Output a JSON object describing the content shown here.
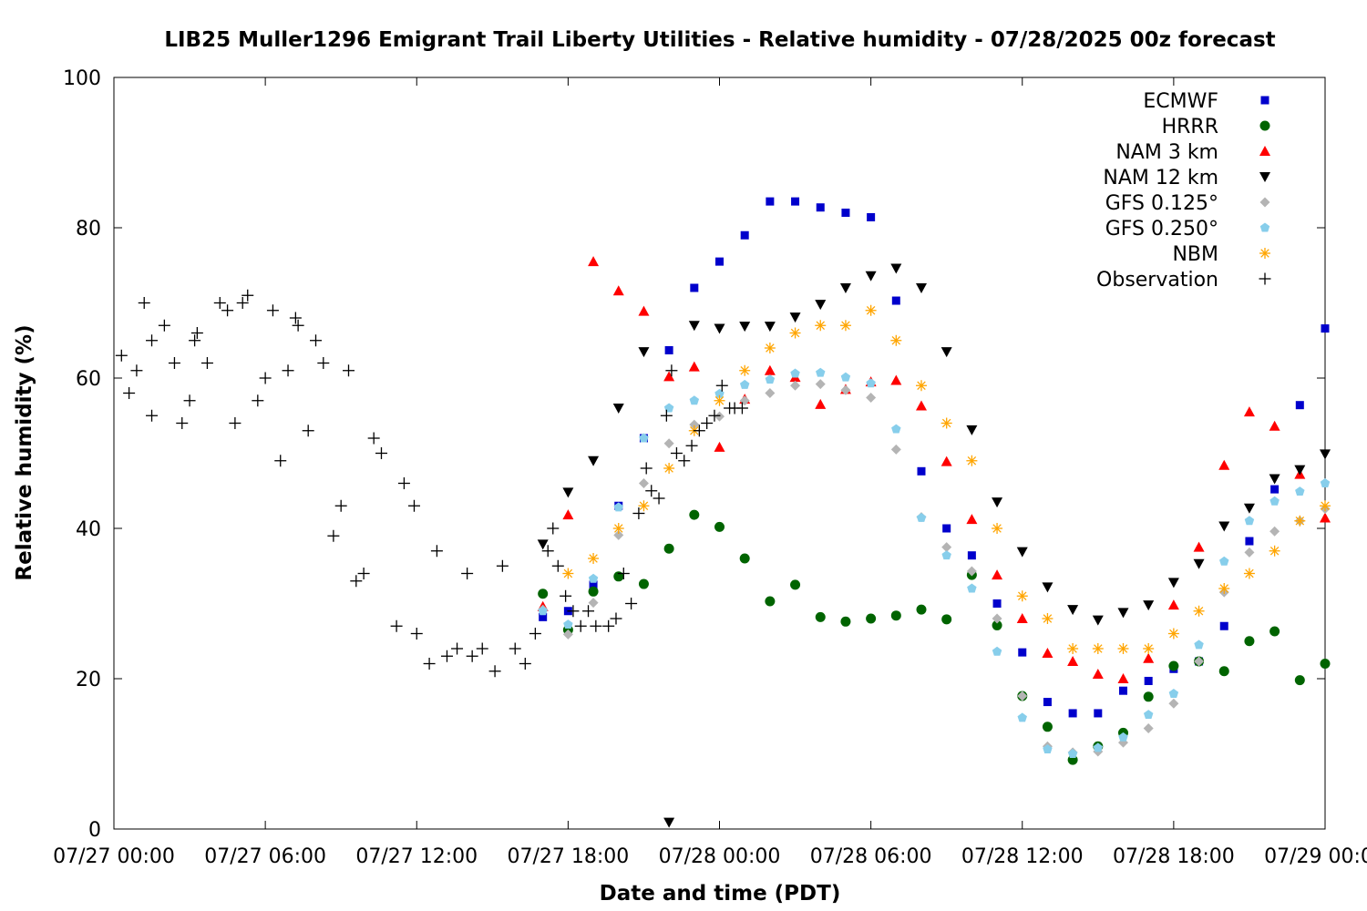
{
  "chart_data": {
    "type": "scatter",
    "title": "LIB25 Muller1296 Emigrant Trail Liberty Utilities - Relative humidity - 07/28/2025 00z forecast",
    "xlabel": "Date and time (PDT)",
    "ylabel": "Relative humidity (%)",
    "x_unit": "hours since 07/27 00:00 PDT",
    "xlim": [
      0,
      48
    ],
    "ylim": [
      0,
      100
    ],
    "x_ticks": [
      {
        "value": 0,
        "label": "07/27 00:00"
      },
      {
        "value": 6,
        "label": "07/27 06:00"
      },
      {
        "value": 12,
        "label": "07/27 12:00"
      },
      {
        "value": 18,
        "label": "07/27 18:00"
      },
      {
        "value": 24,
        "label": "07/28 00:00"
      },
      {
        "value": 30,
        "label": "07/28 06:00"
      },
      {
        "value": 36,
        "label": "07/28 12:00"
      },
      {
        "value": 42,
        "label": "07/28 18:00"
      },
      {
        "value": 48,
        "label": "07/29 00:00"
      }
    ],
    "y_ticks": [
      {
        "value": 0,
        "label": "0"
      },
      {
        "value": 20,
        "label": "20"
      },
      {
        "value": 40,
        "label": "40"
      },
      {
        "value": 60,
        "label": "60"
      },
      {
        "value": 80,
        "label": "80"
      },
      {
        "value": 100,
        "label": "100"
      }
    ],
    "grid": false,
    "legend_position": "top-right",
    "series": [
      {
        "name": "ECMWF",
        "marker": "square",
        "color": "#0000cc",
        "x": [
          17,
          18,
          19,
          20,
          21,
          22,
          23,
          24,
          25,
          26,
          27,
          28,
          29,
          30,
          31,
          32,
          33,
          34,
          35,
          36,
          37,
          38,
          39,
          40,
          41,
          42,
          43,
          44,
          45,
          46,
          47,
          48
        ],
        "y": [
          28.2,
          29,
          32.5,
          43,
          52,
          63.7,
          72,
          75.5,
          79,
          83.5,
          83.5,
          82.7,
          82,
          81.4,
          70.3,
          47.6,
          40,
          36.4,
          30,
          23.5,
          16.9,
          15.4,
          15.4,
          18.4,
          19.7,
          21.3,
          22.3,
          27,
          38.3,
          45.2,
          56.4,
          66.6
        ]
      },
      {
        "name": "HRRR",
        "marker": "circle",
        "color": "#006400",
        "x": [
          17,
          18,
          19,
          20,
          21,
          22,
          23,
          24,
          25,
          26,
          27,
          28,
          29,
          30,
          31,
          32,
          33,
          34,
          35,
          36,
          37,
          38,
          39,
          40,
          41,
          42,
          43,
          44,
          45,
          46,
          47,
          48
        ],
        "y": [
          31.3,
          26.5,
          31.6,
          33.6,
          32.6,
          37.3,
          41.8,
          40.2,
          36,
          30.3,
          32.5,
          28.2,
          27.6,
          28,
          28.4,
          29.2,
          27.9,
          33.8,
          27.1,
          17.7,
          13.6,
          9.2,
          11,
          12.8,
          17.6,
          21.7,
          22.3,
          21,
          25,
          26.3,
          19.8,
          22
        ]
      },
      {
        "name": "NAM 3 km",
        "marker": "triangle-up",
        "color": "#ff0000",
        "x": [
          17,
          18,
          19,
          20,
          21,
          22,
          23,
          24,
          25,
          26,
          27,
          28,
          29,
          30,
          31,
          32,
          33,
          34,
          35,
          36,
          37,
          38,
          39,
          40,
          41,
          42,
          43,
          44,
          45,
          46,
          47,
          48
        ],
        "y": [
          29.6,
          41.8,
          75.5,
          71.6,
          68.9,
          60.2,
          61.5,
          50.8,
          57.2,
          61,
          60.1,
          56.5,
          58.5,
          59.5,
          59.7,
          56.3,
          48.9,
          41.2,
          33.8,
          28,
          23.4,
          22.3,
          20.6,
          20,
          22.7,
          29.8,
          37.5,
          48.4,
          55.5,
          53.6,
          47.2,
          41.4
        ]
      },
      {
        "name": "NAM 12 km",
        "marker": "triangle-down",
        "color": "#000000",
        "x": [
          17,
          18,
          19,
          20,
          21,
          22,
          23,
          24,
          25,
          26,
          27,
          28,
          29,
          30,
          31,
          32,
          33,
          34,
          35,
          36,
          37,
          38,
          39,
          40,
          41,
          42,
          43,
          44,
          45,
          46,
          47,
          48
        ],
        "y": [
          37.9,
          44.8,
          49,
          56,
          63.5,
          0.9,
          67,
          66.6,
          66.9,
          66.9,
          68.1,
          69.8,
          72,
          73.6,
          74.6,
          72,
          63.5,
          53.1,
          43.5,
          36.9,
          32.2,
          29.2,
          27.8,
          28.8,
          29.8,
          32.8,
          35.3,
          40.3,
          42.7,
          46.6,
          47.8,
          49.9
        ]
      },
      {
        "name": "GFS 0.125°",
        "marker": "diamond",
        "color": "#b4b4b4",
        "x": [
          17,
          18,
          19,
          20,
          21,
          22,
          23,
          24,
          25,
          26,
          27,
          28,
          29,
          30,
          31,
          32,
          33,
          34,
          35,
          36,
          37,
          38,
          39,
          40,
          41,
          42,
          43,
          44,
          45,
          46,
          47,
          48
        ],
        "y": [
          29.2,
          25.9,
          30.1,
          39.1,
          46,
          51.3,
          53.8,
          54.9,
          57,
          58,
          59,
          59.2,
          58.4,
          57.4,
          50.5,
          41.5,
          37.5,
          34.3,
          28,
          17.7,
          11,
          10.2,
          10.3,
          11.5,
          13.4,
          16.7,
          22.3,
          31.5,
          36.8,
          39.6,
          41,
          42.6
        ]
      },
      {
        "name": "GFS 0.250°",
        "marker": "pentagon",
        "color": "#87ceeb",
        "x": [
          17,
          18,
          19,
          20,
          21,
          22,
          23,
          24,
          25,
          26,
          27,
          28,
          29,
          30,
          31,
          32,
          33,
          34,
          35,
          36,
          37,
          38,
          39,
          40,
          41,
          42,
          43,
          44,
          45,
          46,
          47,
          48
        ],
        "y": [
          29,
          27.2,
          33.3,
          42.8,
          52,
          56,
          57,
          57.9,
          59.1,
          59.8,
          60.6,
          60.7,
          60.1,
          59.3,
          53.2,
          41.4,
          36.4,
          32,
          23.6,
          14.8,
          10.6,
          10,
          10.8,
          12.2,
          15.2,
          18,
          24.5,
          35.6,
          41,
          43.6,
          44.9,
          46
        ]
      },
      {
        "name": "NBM",
        "marker": "asterisk",
        "color": "#ffa500",
        "x": [
          18,
          19,
          20,
          21,
          22,
          23,
          24,
          25,
          26,
          27,
          28,
          29,
          30,
          31,
          32,
          33,
          34,
          35,
          36,
          37,
          38,
          39,
          40,
          41,
          42,
          43,
          44,
          45,
          46,
          47,
          48
        ],
        "y": [
          34,
          36,
          40,
          43,
          48,
          53,
          57,
          61,
          64,
          66,
          67,
          67,
          69,
          65,
          59,
          54,
          49,
          40,
          31,
          28,
          24,
          24,
          24,
          24,
          26,
          29,
          32,
          34,
          37,
          41,
          43
        ]
      },
      {
        "name": "Observation",
        "marker": "plus",
        "color": "#000000",
        "x": [
          0.3,
          0.6,
          0.9,
          1.2,
          1.5,
          1.5,
          2,
          2.4,
          2.7,
          3,
          3.2,
          3.3,
          3.7,
          4.2,
          4.5,
          4.8,
          5.1,
          5.3,
          5.7,
          6,
          6.3,
          6.6,
          6.9,
          7.2,
          7.3,
          7.7,
          8,
          8.3,
          8.7,
          9,
          9.3,
          9.6,
          9.9,
          10.3,
          10.6,
          11.2,
          11.5,
          11.9,
          12,
          12.5,
          12.8,
          13.2,
          13.6,
          14,
          14.2,
          14.6,
          15.1,
          15.4,
          15.9,
          16.3,
          16.7,
          17.2,
          17.4,
          17.6,
          17.9,
          18.2,
          18.5,
          18.8,
          19.1,
          19.6,
          19.9,
          20.2,
          20.5,
          20.8,
          21.1,
          21.3,
          21.6,
          21.9,
          22.1,
          22.3,
          22.6,
          22.9,
          23.2,
          23.5,
          23.8,
          24.1,
          24.4,
          24.6,
          24.9
        ],
        "y": [
          63,
          58,
          61,
          70,
          55,
          65,
          67,
          62,
          54,
          57,
          65,
          66,
          62,
          70,
          69,
          54,
          70,
          71,
          57,
          60,
          69,
          49,
          61,
          68,
          67,
          53,
          65,
          62,
          39,
          43,
          61,
          33,
          34,
          52,
          50,
          27,
          46,
          43,
          26,
          22,
          37,
          23,
          24,
          34,
          23,
          24,
          21,
          35,
          24,
          22,
          26,
          37,
          40,
          35,
          31,
          29,
          27,
          29,
          27,
          27,
          28,
          34,
          30,
          42,
          48,
          45,
          44,
          55,
          61,
          50,
          49,
          51,
          53,
          54,
          55,
          59,
          56,
          56,
          56
        ]
      }
    ]
  }
}
